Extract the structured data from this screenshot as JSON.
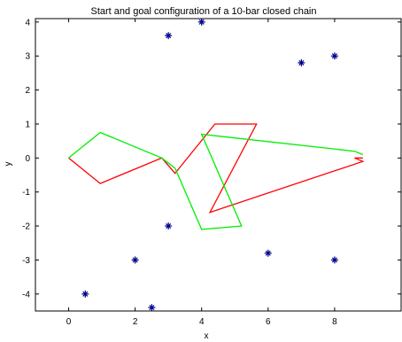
{
  "chart_data": {
    "type": "line",
    "title": "Start and goal configuration of a 10-bar closed chain",
    "xlabel": "x",
    "ylabel": "y",
    "xlim": [
      -1,
      10
    ],
    "ylim": [
      -4.5,
      4.1
    ],
    "xticks": [
      0,
      2,
      4,
      6,
      8
    ],
    "yticks": [
      -4,
      -3,
      -2,
      -1,
      0,
      1,
      2,
      3,
      4
    ],
    "grid": false,
    "legend": "none",
    "series": [
      {
        "kind": "line",
        "color": "#ff0000",
        "x": [
          0,
          0.95,
          2.8,
          3.2,
          4.4,
          5.65,
          4.25,
          8.85,
          8.6,
          8.85
        ],
        "y": [
          0,
          -0.75,
          0,
          -0.45,
          1.0,
          1.0,
          -1.6,
          -0.1,
          0,
          0
        ]
      },
      {
        "kind": "line",
        "color": "#00ee00",
        "x": [
          0,
          0.95,
          2.8,
          3.2,
          4.0,
          5.2,
          4.0,
          8.6,
          8.85,
          8.6
        ],
        "y": [
          0,
          0.75,
          0,
          -0.3,
          -2.1,
          -2.0,
          0.7,
          0.2,
          0.1,
          0.2
        ]
      },
      {
        "kind": "scatter",
        "color": "#00008b",
        "marker": "star",
        "x": [
          3,
          4,
          7,
          8,
          0.5,
          2,
          2.5,
          3,
          6,
          8
        ],
        "y": [
          3.6,
          4.0,
          2.8,
          3.0,
          -4.0,
          -3.0,
          -4.4,
          -2.0,
          -2.8,
          -3.0
        ]
      }
    ]
  }
}
